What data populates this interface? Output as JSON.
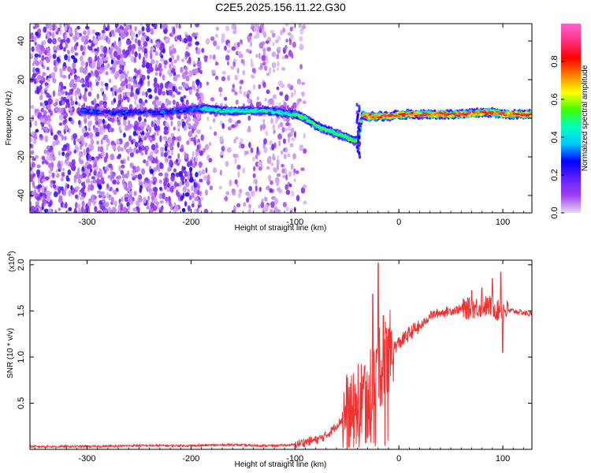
{
  "title": "C2E5.2025.156.11.22.G30",
  "chart_data": [
    {
      "type": "heatmap",
      "xlabel": "Height of straight line (km)",
      "ylabel": "Frequency (Hz)",
      "xlim": [
        -355,
        128
      ],
      "ylim": [
        -49,
        49
      ],
      "xticks": [
        -300,
        -200,
        -100,
        0,
        100
      ],
      "xtick_labels": [
        "-300",
        "-200",
        "-100",
        "0",
        "100"
      ],
      "yticks": [
        -40,
        -20,
        0,
        20,
        40
      ],
      "ytick_labels": [
        "-40",
        "-20",
        "0",
        "20",
        "40"
      ],
      "colorbar": {
        "label": "Normalized spectral amplitude",
        "range": [
          0,
          1
        ],
        "ticks": [
          0.0,
          0.2,
          0.4,
          0.6,
          0.8
        ],
        "tick_labels": [
          "0.0",
          "0.2",
          "0.4",
          "0.6",
          "0.8"
        ],
        "colormap": [
          "#e8d8f4",
          "#a040f0",
          "#6020ff",
          "#0000ff",
          "#00c8ff",
          "#00ffc0",
          "#40ff00",
          "#ffff00",
          "#ff8000",
          "#ff0000",
          "#ff3080",
          "#ff60d0"
        ]
      },
      "ridge": {
        "name": "",
        "x": [
          -305,
          -280,
          -255,
          -230,
          -210,
          -190,
          -170,
          -150,
          -130,
          -115,
          -100,
          -90,
          -80,
          -70,
          -60,
          -50,
          -45,
          -40,
          -35,
          -30,
          -20,
          -10,
          0,
          20,
          40,
          60,
          80,
          90,
          100,
          128
        ],
        "y": [
          4,
          3,
          3,
          3,
          4,
          5,
          4,
          4,
          4,
          3,
          2,
          0,
          -4,
          -6,
          -8,
          -10,
          -11,
          -12,
          2,
          1,
          1,
          1,
          2,
          2,
          2,
          2,
          3,
          3,
          2,
          2
        ]
      }
    },
    {
      "type": "line",
      "xlabel": "Height of straight line (km)",
      "ylabel": "SNR (10 * v/v)",
      "y_multiplier": "(x10",
      "y_multiplier_exp": "4",
      "y_multiplier_close": ")",
      "xlim": [
        -355,
        128
      ],
      "ylim": [
        0,
        2.05
      ],
      "xticks": [
        -300,
        -200,
        -100,
        0,
        100
      ],
      "xtick_labels": [
        "-300",
        "-200",
        "-100",
        "0",
        "100"
      ],
      "yticks": [
        0.5,
        1.0,
        1.5,
        2.0
      ],
      "ytick_labels": [
        "0.5",
        "1.0",
        "1.5",
        "2.0"
      ],
      "series": [
        {
          "name": "",
          "color": "#ee3333",
          "x": [
            -355,
            -300,
            -250,
            -200,
            -160,
            -140,
            -120,
            -100,
            -90,
            -80,
            -75,
            -70,
            -65,
            -60,
            -55,
            -50,
            -45,
            -40,
            -35,
            -30,
            -25,
            -20,
            -15,
            -10,
            -5,
            0,
            5,
            10,
            15,
            20,
            25,
            30,
            40,
            50,
            60,
            70,
            80,
            90,
            95,
            100,
            105,
            110,
            120,
            128
          ],
          "y": [
            0.03,
            0.03,
            0.04,
            0.04,
            0.05,
            0.04,
            0.04,
            0.05,
            0.08,
            0.1,
            0.12,
            0.15,
            0.2,
            0.26,
            0.32,
            0.4,
            0.35,
            0.5,
            0.55,
            0.65,
            0.72,
            0.85,
            0.95,
            1.05,
            1.1,
            1.15,
            1.2,
            1.25,
            1.3,
            1.32,
            1.38,
            1.45,
            1.48,
            1.5,
            1.52,
            1.53,
            1.55,
            1.55,
            1.5,
            1.52,
            1.5,
            1.5,
            1.48,
            1.46
          ],
          "spikes": [
            {
              "x": -25,
              "y": 1.68
            },
            {
              "x": -20,
              "y": 2.02
            },
            {
              "x": -15,
              "y": 1.45
            },
            {
              "x": -10,
              "y": 1.3
            },
            {
              "x": 70,
              "y": 1.72
            },
            {
              "x": 80,
              "y": 1.75
            },
            {
              "x": 90,
              "y": 1.85
            },
            {
              "x": 98,
              "y": 1.92
            },
            {
              "x": 100,
              "y": 1.05
            }
          ]
        }
      ]
    }
  ]
}
